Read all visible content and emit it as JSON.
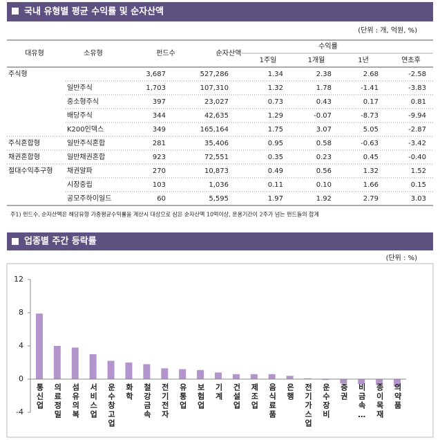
{
  "table": {
    "title": "국내 유형별 평균 수익률 및 순자산액",
    "unit": "(단위 : 개, 억원, %)",
    "columns": [
      "대유형",
      "소유형",
      "펀드수",
      "순자산액",
      "1주일",
      "1개월",
      "1년",
      "연초후"
    ],
    "group_header": "수익률",
    "rows": [
      [
        "주식형",
        null,
        "3,687",
        "527,286",
        "1.34",
        "2.38",
        "2.68",
        "-2.58"
      ],
      [
        null,
        "일반주식",
        "1,703",
        "107,310",
        "1.32",
        "1.78",
        "-1.41",
        "-3.83"
      ],
      [
        null,
        "중소형주식",
        "397",
        "23,027",
        "0.73",
        "0.43",
        "0.17",
        "0.81"
      ],
      [
        null,
        "배당주식",
        "344",
        "42,635",
        "1.29",
        "-0.07",
        "-8.73",
        "-9.94"
      ],
      [
        null,
        "K200인덱스",
        "349",
        "165,164",
        "1.75",
        "3.07",
        "5.05",
        "-2.87"
      ],
      [
        "주식혼합형",
        "일반주식혼합",
        "281",
        "35,406",
        "0.95",
        "0.58",
        "-0.63",
        "-3.42"
      ],
      [
        "채권혼합형",
        "일반채권혼합",
        "923",
        "72,551",
        "0.35",
        "0.23",
        "0.45",
        "-0.40"
      ],
      [
        "절대수익추구형",
        "채권알파",
        "270",
        "10,873",
        "0.49",
        "0.56",
        "1.32",
        "1.52"
      ],
      [
        null,
        "시장중립",
        "103",
        "1,036",
        "0.11",
        "0.10",
        "1.66",
        "0.15"
      ],
      [
        null,
        "공모주하이일드",
        "60",
        "5,595",
        "1.97",
        "1.92",
        "2.79",
        "3.03"
      ]
    ],
    "note": "주1) 펀드수, 순자산액은 해당유형 가중평균수익률을 계산시 대상으로 삼은 순자산액 10억이상, 운용기간이 2주가 넘는 펀드들의 합계"
  },
  "chart_data": {
    "type": "bar",
    "title": "업종별 주간 등락률",
    "unit": "(단위 : %)",
    "categories": [
      "통신업",
      "의료정밀",
      "섬유의복",
      "서비스업",
      "운수창고업",
      "화학",
      "철강금속",
      "전기전자",
      "유통업",
      "보험업",
      "기계",
      "건설업",
      "제조업",
      "음식료품",
      "은행",
      "전기가스업",
      "운수장비",
      "증권",
      "비금속…",
      "종이목재",
      "의약품"
    ],
    "values": [
      7.9,
      4.0,
      3.8,
      3.0,
      2.2,
      2.0,
      1.8,
      1.3,
      1.2,
      1.1,
      0.8,
      0.6,
      0.6,
      0.6,
      0.4,
      0.1,
      -0.1,
      -0.5,
      -0.6,
      -0.7,
      -0.9
    ],
    "color": "#b494cc",
    "ylim": [
      -4,
      12
    ],
    "yticks": [
      -4,
      0,
      4,
      8,
      12
    ],
    "grid": false
  }
}
